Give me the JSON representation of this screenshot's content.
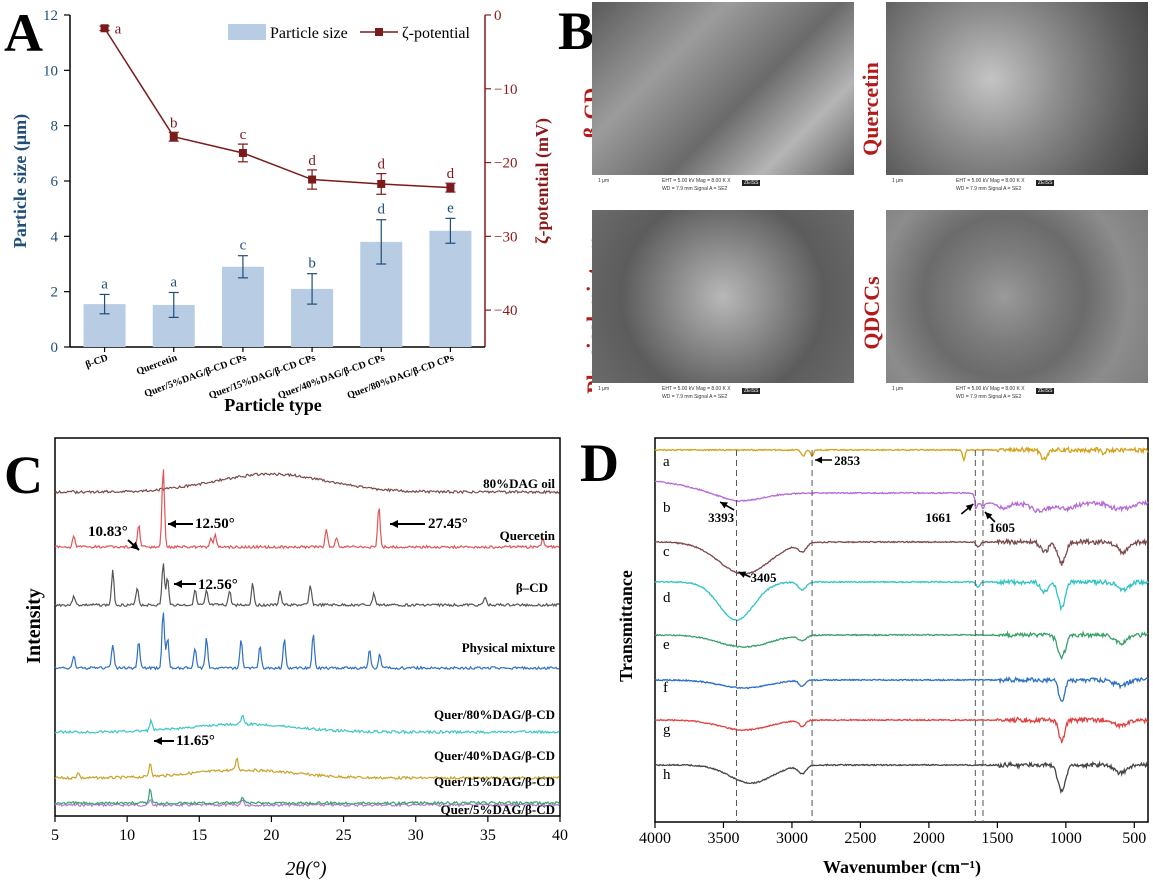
{
  "panels": {
    "a": "A",
    "b": "B",
    "c": "C",
    "d": "D"
  },
  "panel_a": {
    "legend": {
      "bar": "Particle size",
      "line": "ζ-potential"
    },
    "xlabel": "Particle type",
    "ylabel_left": "Particle size (μm)",
    "ylabel_right": "ζ-potential (mV)",
    "yticks_left": [
      "0",
      "2",
      "4",
      "6",
      "8",
      "10",
      "12"
    ],
    "yticks_right": [
      "0",
      "−10",
      "−20",
      "−30",
      "−40"
    ],
    "categories": [
      "β-CD",
      "Quercetin",
      "Quer/5%DAG/β-CD CPs",
      "Quer/15%DAG/β-CD CPs",
      "Quer/40%DAG/β-CD CPs",
      "Quer/80%DAG/β-CD CPs"
    ],
    "colors": {
      "bar": "#b8cce4",
      "line": "#7b1a1a",
      "left_axis": "#1f4e79",
      "right_axis": "#8b1a1a"
    }
  },
  "panel_b": {
    "labels": [
      "β-CD",
      "Quercetin",
      "Physical mixture",
      "QDCCs"
    ],
    "scale": "1 μm",
    "meta1": "EHT = 5.00 kV   Mag = 8.00 K X",
    "meta2": "WD = 7.9 mm   Signal A = SE2",
    "logo": "ZEISS"
  },
  "panel_c": {
    "xlabel": "2θ(°)",
    "ylabel": "Intensity",
    "xticks": [
      "5",
      "10",
      "15",
      "20",
      "25",
      "30",
      "35",
      "40"
    ],
    "traces": [
      {
        "name": "80%DAG oil",
        "color": "#7b4a4a"
      },
      {
        "name": "Quercetin",
        "color": "#e05555"
      },
      {
        "name": "β–CD",
        "color": "#555555"
      },
      {
        "name": "Physical mixture",
        "color": "#2f6fc4"
      },
      {
        "name": "Quer/80%DAG/β-CD",
        "color": "#3cc6c6"
      },
      {
        "name": "Quer/40%DAG/β-CD",
        "color": "#c9a227"
      },
      {
        "name": "Quer/15%DAG/β-CD",
        "color": "#b07ad6"
      },
      {
        "name": "Quer/5%DAG/β-CD",
        "color": "#3aa06a"
      }
    ],
    "annotations": [
      "10.83°",
      "12.50°",
      "27.45°",
      "12.56°",
      "11.65°"
    ]
  },
  "panel_d": {
    "xlabel": "Wavenumber (cm⁻¹)",
    "ylabel": "Transmittance",
    "xticks": [
      "4000",
      "3500",
      "3000",
      "2500",
      "2000",
      "1500",
      "1000",
      "500"
    ],
    "traces": [
      {
        "name": "a",
        "color": "#d4a017"
      },
      {
        "name": "b",
        "color": "#b56ad6"
      },
      {
        "name": "c",
        "color": "#7b4a4a"
      },
      {
        "name": "d",
        "color": "#2ec4c4"
      },
      {
        "name": "e",
        "color": "#3aa06a"
      },
      {
        "name": "f",
        "color": "#2a6fc4"
      },
      {
        "name": "g",
        "color": "#e04040"
      },
      {
        "name": "h",
        "color": "#444444"
      }
    ],
    "annotations": [
      "2853",
      "3393",
      "1661",
      "1605",
      "3405"
    ]
  },
  "chart_data": [
    {
      "type": "bar",
      "categories": [
        "β-CD",
        "Quercetin",
        "Quer/5%DAG/β-CD CPs",
        "Quer/15%DAG/β-CD CPs",
        "Quer/40%DAG/β-CD CPs",
        "Quer/80%DAG/β-CD CPs"
      ],
      "series": [
        {
          "name": "Particle size",
          "values": [
            1.55,
            1.52,
            2.9,
            2.1,
            3.8,
            4.2
          ],
          "errors": [
            0.35,
            0.45,
            0.4,
            0.55,
            0.8,
            0.45
          ],
          "letters": [
            "a",
            "a",
            "c",
            "b",
            "d",
            "e"
          ]
        },
        {
          "name": "ζ-potential",
          "type": "line",
          "axis": "right",
          "values": [
            -1.8,
            -16.5,
            -18.7,
            -22.3,
            -22.9,
            -23.4
          ],
          "errors": [
            0.3,
            0.6,
            1.2,
            1.3,
            1.4,
            0.6
          ],
          "letters": [
            "a",
            "b",
            "c",
            "d",
            "d",
            "d"
          ]
        }
      ],
      "title": "",
      "xlabel": "Particle type",
      "ylabel": "Particle size (μm)",
      "ylabel_right": "ζ-potential (mV)",
      "ylim": [
        0,
        12
      ],
      "ylim_right": [
        -45,
        0
      ],
      "legend": "top-right"
    },
    {
      "type": "line",
      "xlabel": "2θ(°)",
      "ylabel": "Intensity",
      "xlim": [
        5,
        40
      ],
      "series_names": [
        "80%DAG oil",
        "Quercetin",
        "β–CD",
        "Physical mixture",
        "Quer/80%DAG/β-CD",
        "Quer/40%DAG/β-CD",
        "Quer/15%DAG/β-CD",
        "Quer/5%DAG/β-CD"
      ],
      "annotated_peaks": [
        10.83,
        12.5,
        27.45,
        12.56,
        11.65
      ]
    },
    {
      "type": "line",
      "xlabel": "Wavenumber (cm⁻¹)",
      "ylabel": "Transmittance",
      "xlim": [
        4000,
        400
      ],
      "series_names": [
        "a",
        "b",
        "c",
        "d",
        "e",
        "f",
        "g",
        "h"
      ],
      "annotated_bands": [
        2853,
        3393,
        1661,
        1605,
        3405
      ]
    }
  ]
}
